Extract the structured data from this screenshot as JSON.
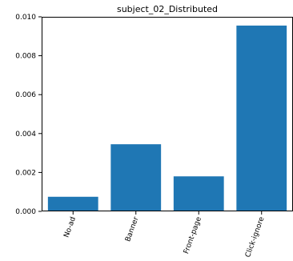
{
  "chart_data": {
    "type": "bar",
    "title": "subject_02_Distributed",
    "xlabel": "",
    "ylabel": "",
    "categories": [
      "No-ad",
      "Banner",
      "Front-page",
      "Click-ignore"
    ],
    "values": [
      0.00075,
      0.00345,
      0.0018,
      0.00955
    ],
    "ylim": [
      0,
      0.01
    ],
    "yticks": [
      "0.000",
      "0.002",
      "0.004",
      "0.006",
      "0.008",
      "0.010"
    ],
    "ytick_values": [
      0,
      0.002,
      0.004,
      0.006,
      0.008,
      0.01
    ],
    "bar_color": "#1f77b4",
    "grid": false,
    "legend": "none"
  }
}
